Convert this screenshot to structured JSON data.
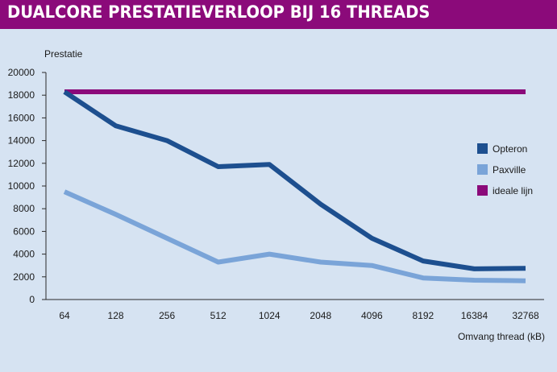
{
  "title": "DUALCORE PRESTATIEVERLOOP BIJ 16 THREADS",
  "colors": {
    "title_bar": "#8b0a7a",
    "background": "#d6e3f2",
    "axis": "#2a2a2a"
  },
  "chart_data": {
    "type": "line",
    "ylabel": "Prestatie",
    "xlabel": "Omvang thread (kB)",
    "categories": [
      "64",
      "128",
      "256",
      "512",
      "1024",
      "2048",
      "4096",
      "8192",
      "16384",
      "32768"
    ],
    "ylim": [
      0,
      20000
    ],
    "yticks": [
      0,
      2000,
      4000,
      6000,
      8000,
      10000,
      12000,
      14000,
      16000,
      18000,
      20000
    ],
    "grid": false,
    "legend_position": "right",
    "series": [
      {
        "name": "Opteron",
        "color": "#1d4f8f",
        "values": [
          18300,
          15300,
          14000,
          11700,
          11900,
          8400,
          5400,
          3400,
          2700,
          2750
        ]
      },
      {
        "name": "Paxville",
        "color": "#7aa4d8",
        "values": [
          9500,
          7500,
          5400,
          3300,
          4000,
          3300,
          3000,
          1900,
          1700,
          1650
        ]
      },
      {
        "name": "ideale lijn",
        "color": "#8b0a7a",
        "values": [
          18300,
          18300,
          18300,
          18300,
          18300,
          18300,
          18300,
          18300,
          18300,
          18300
        ]
      }
    ]
  }
}
